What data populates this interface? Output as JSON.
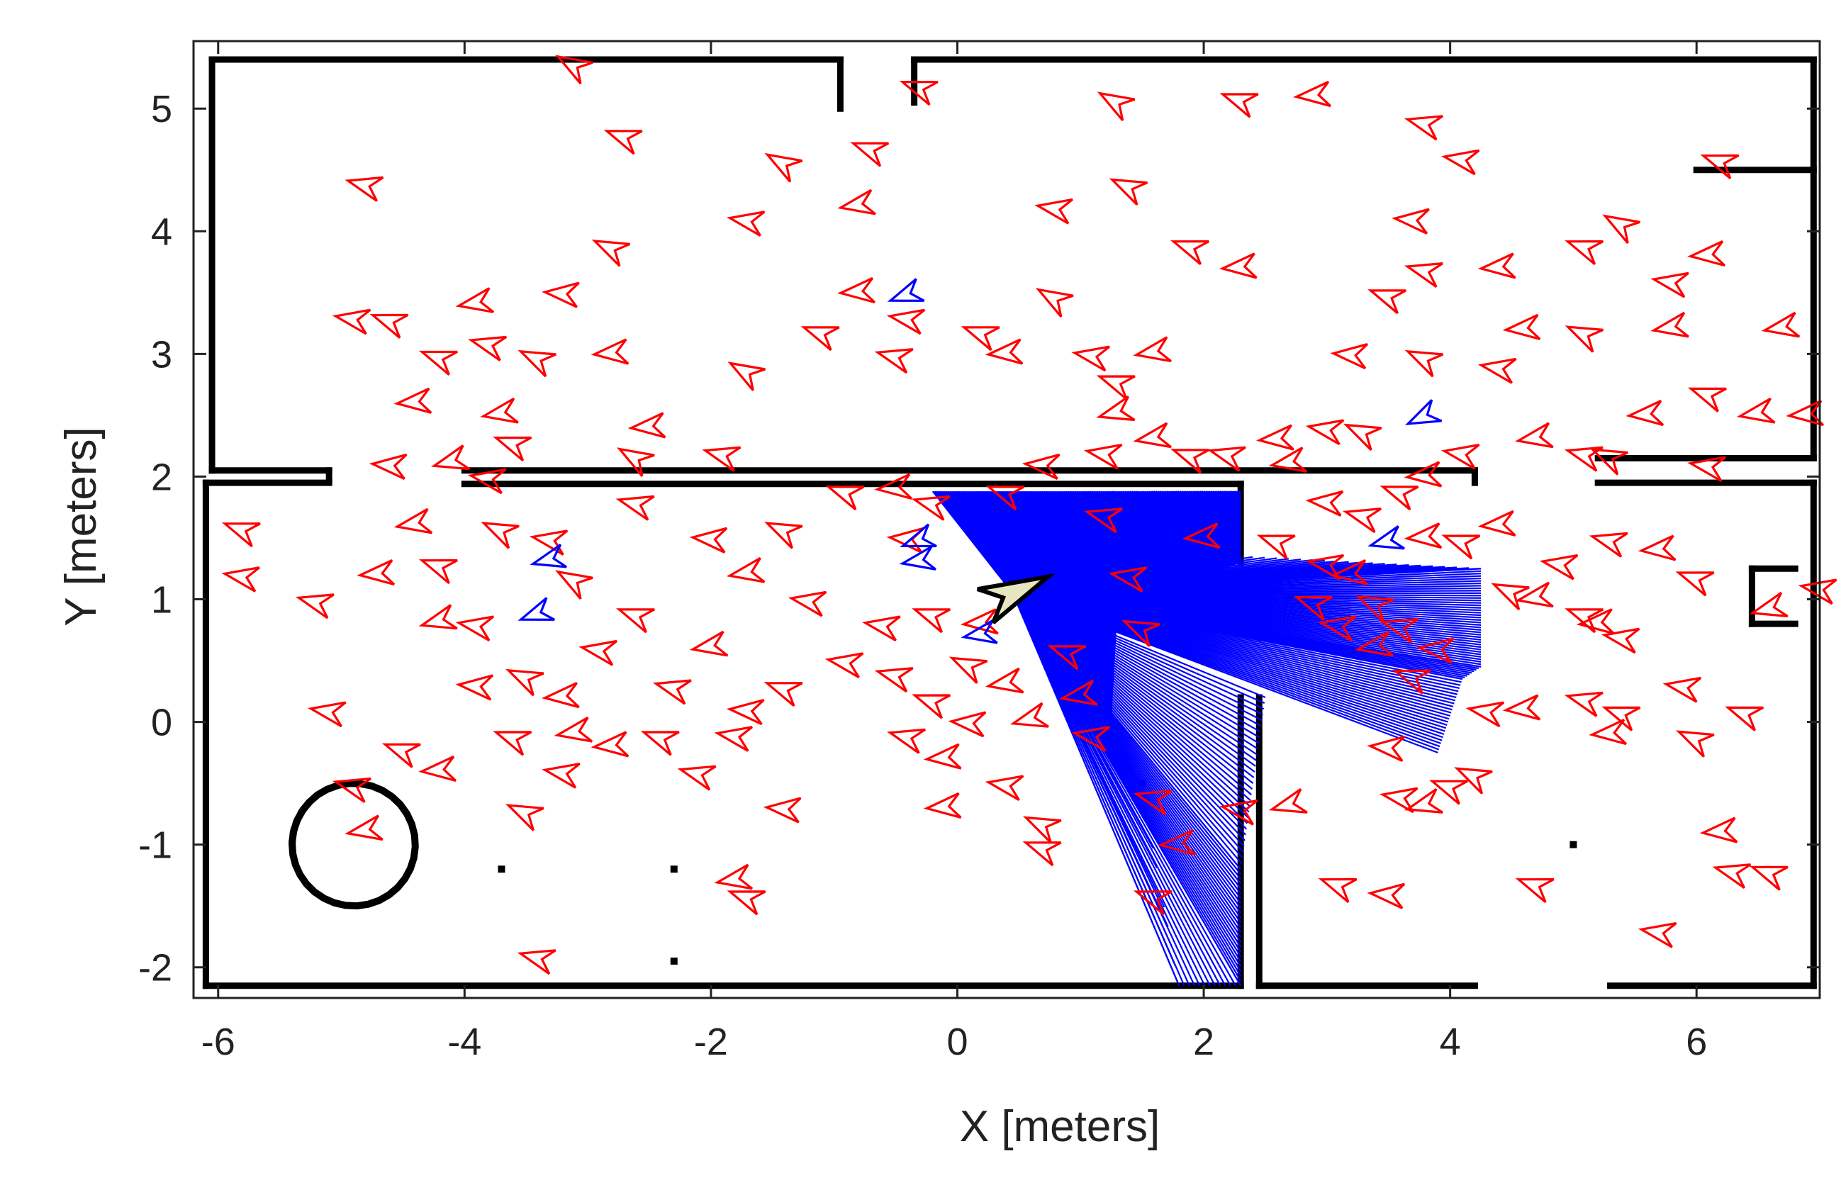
{
  "chart_data": {
    "type": "scatter",
    "xlabel": "X [meters]",
    "ylabel": "Y [meters]",
    "xlim": [
      -6.2,
      7.0
    ],
    "ylim": [
      -2.25,
      5.55
    ],
    "x_ticks": [
      -6,
      -4,
      -2,
      0,
      2,
      4,
      6
    ],
    "y_ticks": [
      -2,
      -1,
      0,
      1,
      2,
      3,
      4,
      5
    ],
    "x_tick_labels": [
      "-6",
      "-4",
      "-2",
      "0",
      "2",
      "4",
      "6"
    ],
    "y_tick_labels": [
      "-2",
      "-1",
      "0",
      "1",
      "2",
      "3",
      "4",
      "5"
    ],
    "grid": false,
    "colors": {
      "particles": "#ff0000",
      "best_particles": "#0000ff",
      "laser_rays": "#0000ff",
      "robot_fill": "#e6e6c0",
      "walls": "#000000"
    },
    "robot_pose": {
      "x": 0.45,
      "y": 1.05,
      "heading_deg": 25
    },
    "laser_origin": {
      "x": 0.45,
      "y": 1.05
    },
    "laser_endpoints": {
      "top_wall": {
        "from": [
          -0.2,
          1.88
        ],
        "to": [
          2.3,
          1.88
        ]
      },
      "right_fan": {
        "from": [
          4.25,
          1.25
        ],
        "to": [
          4.25,
          0.45
        ]
      },
      "far_right_down": {
        "from": [
          4.1,
          0.35
        ],
        "to": [
          3.9,
          -0.25
        ]
      },
      "bottom": {
        "from": [
          1.5,
          -0.55
        ],
        "to": [
          2.3,
          -2.15
        ]
      }
    },
    "particles": [
      [
        -3.2,
        5.4,
        -30
      ],
      [
        -2.8,
        4.8,
        -20
      ],
      [
        -4.9,
        4.4,
        -15
      ],
      [
        -2.9,
        3.9,
        -25
      ],
      [
        -1.8,
        4.1,
        -10
      ],
      [
        -1.5,
        4.6,
        -30
      ],
      [
        -0.8,
        4.7,
        -20
      ],
      [
        -0.9,
        4.2,
        10
      ],
      [
        -0.4,
        5.2,
        -20
      ],
      [
        1.2,
        5.1,
        -30
      ],
      [
        2.2,
        5.1,
        -20
      ],
      [
        2.8,
        5.1,
        5
      ],
      [
        3.7,
        4.9,
        -15
      ],
      [
        4.0,
        4.6,
        -10
      ],
      [
        6.1,
        4.6,
        -20
      ],
      [
        1.3,
        4.4,
        -25
      ],
      [
        0.7,
        4.2,
        -10
      ],
      [
        1.8,
        3.9,
        -20
      ],
      [
        2.2,
        3.7,
        5
      ],
      [
        3.6,
        4.1,
        -5
      ],
      [
        3.7,
        3.7,
        -15
      ],
      [
        4.3,
        3.7,
        5
      ],
      [
        5.0,
        3.9,
        -20
      ],
      [
        5.3,
        4.1,
        -30
      ],
      [
        5.7,
        3.6,
        -10
      ],
      [
        6.0,
        3.8,
        5
      ],
      [
        6.6,
        3.2,
        10
      ],
      [
        4.5,
        3.2,
        5
      ],
      [
        5.0,
        3.2,
        -25
      ],
      [
        5.7,
        3.2,
        10
      ],
      [
        3.4,
        3.5,
        -20
      ],
      [
        3.1,
        3.0,
        -5
      ],
      [
        3.7,
        3.0,
        -25
      ],
      [
        4.3,
        2.9,
        -10
      ],
      [
        6.0,
        2.7,
        -20
      ],
      [
        6.4,
        2.5,
        10
      ],
      [
        6.8,
        2.5,
        5
      ],
      [
        -5.0,
        3.3,
        -10
      ],
      [
        -4.7,
        3.3,
        -20
      ],
      [
        -4.0,
        3.4,
        10
      ],
      [
        -3.3,
        3.5,
        -5
      ],
      [
        -2.9,
        3.0,
        5
      ],
      [
        -4.3,
        3.0,
        -20
      ],
      [
        -3.9,
        3.1,
        -15
      ],
      [
        -3.5,
        3.0,
        -25
      ],
      [
        -1.8,
        2.9,
        -30
      ],
      [
        -0.9,
        3.5,
        5
      ],
      [
        -1.2,
        3.2,
        -20
      ],
      [
        -0.5,
        3.3,
        -10
      ],
      [
        0.1,
        3.2,
        -20
      ],
      [
        0.7,
        3.5,
        -30
      ],
      [
        -0.6,
        3.0,
        -15
      ],
      [
        0.3,
        3.0,
        5
      ],
      [
        1.0,
        3.0,
        -10
      ],
      [
        1.5,
        3.0,
        10
      ],
      [
        1.2,
        2.8,
        -20
      ],
      [
        1.2,
        2.5,
        15
      ],
      [
        -4.5,
        2.6,
        5
      ],
      [
        -3.8,
        2.5,
        10
      ],
      [
        -3.7,
        2.3,
        -20
      ],
      [
        -2.7,
        2.2,
        -30
      ],
      [
        -2.0,
        2.2,
        -15
      ],
      [
        -2.6,
        2.4,
        5
      ],
      [
        -3.9,
        2.0,
        -10
      ],
      [
        -4.2,
        2.1,
        15
      ],
      [
        -4.7,
        2.1,
        -5
      ],
      [
        -5.9,
        1.6,
        -20
      ],
      [
        -5.9,
        1.2,
        -10
      ],
      [
        -5.3,
        1.0,
        -15
      ],
      [
        -4.8,
        1.2,
        5
      ],
      [
        -4.3,
        1.3,
        -20
      ],
      [
        -4.5,
        1.6,
        10
      ],
      [
        -3.8,
        1.6,
        -25
      ],
      [
        -3.4,
        1.5,
        -10
      ],
      [
        -3.2,
        1.2,
        -30
      ],
      [
        -2.7,
        1.8,
        -15
      ],
      [
        -2.1,
        1.5,
        -5
      ],
      [
        -1.8,
        1.2,
        10
      ],
      [
        -1.5,
        1.6,
        -25
      ],
      [
        -1.0,
        1.9,
        -20
      ],
      [
        -1.3,
        1.0,
        -10
      ],
      [
        -0.6,
        1.9,
        5
      ],
      [
        -0.3,
        1.8,
        -15
      ],
      [
        -0.5,
        1.5,
        -5
      ],
      [
        -0.3,
        0.9,
        -20
      ],
      [
        -0.7,
        0.8,
        -10
      ],
      [
        0.1,
        0.8,
        5
      ],
      [
        0.0,
        0.5,
        -25
      ],
      [
        -0.6,
        0.4,
        -15
      ],
      [
        -0.3,
        0.2,
        -20
      ],
      [
        0.0,
        0.0,
        -5
      ],
      [
        0.3,
        0.3,
        10
      ],
      [
        0.5,
        0.0,
        15
      ],
      [
        -1.0,
        0.5,
        -10
      ],
      [
        -1.5,
        0.3,
        -20
      ],
      [
        -1.8,
        0.1,
        -5
      ],
      [
        -2.1,
        0.6,
        10
      ],
      [
        -2.4,
        0.3,
        -15
      ],
      [
        -2.7,
        0.9,
        -20
      ],
      [
        -3.0,
        0.6,
        -10
      ],
      [
        -3.3,
        0.2,
        5
      ],
      [
        -3.6,
        0.4,
        -25
      ],
      [
        -4.0,
        0.8,
        -10
      ],
      [
        -4.3,
        0.8,
        15
      ],
      [
        -4.0,
        0.3,
        -5
      ],
      [
        -3.7,
        -0.1,
        -20
      ],
      [
        -3.3,
        -0.4,
        -10
      ],
      [
        -4.3,
        -0.4,
        5
      ],
      [
        -4.6,
        -0.2,
        -20
      ],
      [
        -5.0,
        -0.5,
        -15
      ],
      [
        -4.9,
        -0.9,
        10
      ],
      [
        -5.2,
        0.1,
        -10
      ],
      [
        -3.6,
        -0.7,
        -25
      ],
      [
        -2.9,
        -0.2,
        5
      ],
      [
        -2.5,
        -0.1,
        -20
      ],
      [
        -1.9,
        -0.1,
        -10
      ],
      [
        -1.5,
        -0.7,
        -5
      ],
      [
        -1.8,
        -1.4,
        -20
      ],
      [
        -1.9,
        -1.3,
        10
      ],
      [
        -0.5,
        -0.1,
        -15
      ],
      [
        -0.2,
        -0.3,
        5
      ],
      [
        0.3,
        -0.5,
        -10
      ],
      [
        0.6,
        -0.8,
        -25
      ],
      [
        0.6,
        -1.0,
        -20
      ],
      [
        -0.2,
        -0.7,
        5
      ],
      [
        1.5,
        -0.6,
        -15
      ],
      [
        1.5,
        -1.4,
        -20
      ],
      [
        1.7,
        -1.0,
        5
      ],
      [
        2.2,
        -0.7,
        -10
      ],
      [
        2.6,
        -0.7,
        15
      ],
      [
        3.0,
        -1.3,
        -20
      ],
      [
        3.4,
        -1.4,
        -5
      ],
      [
        3.5,
        -0.6,
        -10
      ],
      [
        3.7,
        -0.7,
        15
      ],
      [
        3.9,
        -0.5,
        -20
      ],
      [
        4.1,
        -0.4,
        -25
      ],
      [
        3.4,
        -0.2,
        -5
      ],
      [
        4.2,
        0.1,
        -10
      ],
      [
        4.5,
        0.1,
        5
      ],
      [
        5.0,
        0.2,
        -15
      ],
      [
        5.3,
        0.1,
        -20
      ],
      [
        5.8,
        0.3,
        -10
      ],
      [
        5.9,
        -0.1,
        -25
      ],
      [
        5.2,
        -0.1,
        5
      ],
      [
        4.6,
        -1.3,
        -20
      ],
      [
        5.6,
        -1.7,
        -10
      ],
      [
        6.1,
        -0.9,
        5
      ],
      [
        6.2,
        -1.2,
        -15
      ],
      [
        6.5,
        -1.2,
        -20
      ],
      [
        6.5,
        0.9,
        15
      ],
      [
        6.9,
        1.1,
        -10
      ],
      [
        5.9,
        1.2,
        -20
      ],
      [
        5.6,
        1.4,
        5
      ],
      [
        5.2,
        1.5,
        -15
      ],
      [
        4.8,
        1.3,
        -10
      ],
      [
        4.4,
        1.1,
        -25
      ],
      [
        4.0,
        1.5,
        -20
      ],
      [
        4.3,
        1.6,
        5
      ],
      [
        4.6,
        1.0,
        10
      ],
      [
        5.0,
        0.9,
        -20
      ],
      [
        5.3,
        0.7,
        -10
      ],
      [
        5.1,
        0.8,
        5
      ],
      [
        5.0,
        2.2,
        -15
      ],
      [
        5.2,
        2.2,
        -25
      ],
      [
        4.6,
        2.3,
        10
      ],
      [
        4.0,
        2.2,
        -10
      ],
      [
        3.7,
        2.0,
        5
      ],
      [
        3.5,
        1.9,
        -20
      ],
      [
        3.2,
        1.7,
        -15
      ],
      [
        2.9,
        1.8,
        -5
      ],
      [
        2.6,
        2.1,
        10
      ],
      [
        2.5,
        1.5,
        -20
      ],
      [
        2.9,
        1.3,
        -10
      ],
      [
        3.1,
        1.2,
        5
      ],
      [
        3.3,
        1.0,
        -25
      ],
      [
        3.5,
        0.8,
        -15
      ],
      [
        3.8,
        0.6,
        -5
      ],
      [
        3.6,
        0.4,
        -20
      ],
      [
        3.3,
        0.6,
        10
      ],
      [
        3.0,
        0.8,
        -10
      ],
      [
        2.8,
        1.0,
        -20
      ],
      [
        3.7,
        1.5,
        5
      ],
      [
        3.2,
        2.4,
        -25
      ],
      [
        2.9,
        2.4,
        -10
      ],
      [
        2.5,
        2.3,
        5
      ],
      [
        2.1,
        2.2,
        -15
      ],
      [
        1.8,
        2.2,
        -20
      ],
      [
        1.5,
        2.3,
        10
      ],
      [
        1.1,
        2.2,
        -10
      ],
      [
        0.6,
        2.1,
        -5
      ],
      [
        0.3,
        1.9,
        -20
      ],
      [
        1.1,
        1.7,
        -15
      ],
      [
        1.9,
        1.5,
        5
      ],
      [
        1.3,
        1.2,
        -10
      ],
      [
        1.4,
        0.8,
        -25
      ],
      [
        0.8,
        0.6,
        -20
      ],
      [
        0.9,
        0.2,
        10
      ],
      [
        1.0,
        -0.1,
        -10
      ],
      [
        -2.2,
        -0.4,
        -15
      ],
      [
        -3.2,
        -0.1,
        10
      ],
      [
        -3.5,
        -1.9,
        -15
      ],
      [
        6.3,
        0.1,
        -20
      ],
      [
        6.0,
        2.1,
        -10
      ],
      [
        5.5,
        2.5,
        5
      ]
    ],
    "best_particles": [
      [
        -0.5,
        3.45,
        20
      ],
      [
        3.7,
        2.45,
        25
      ],
      [
        3.4,
        1.45,
        15
      ],
      [
        -0.4,
        1.45,
        20
      ],
      [
        -0.4,
        1.3,
        10
      ],
      [
        -3.4,
        1.3,
        15
      ],
      [
        -3.5,
        0.85,
        20
      ],
      [
        0.1,
        0.7,
        10
      ]
    ]
  }
}
